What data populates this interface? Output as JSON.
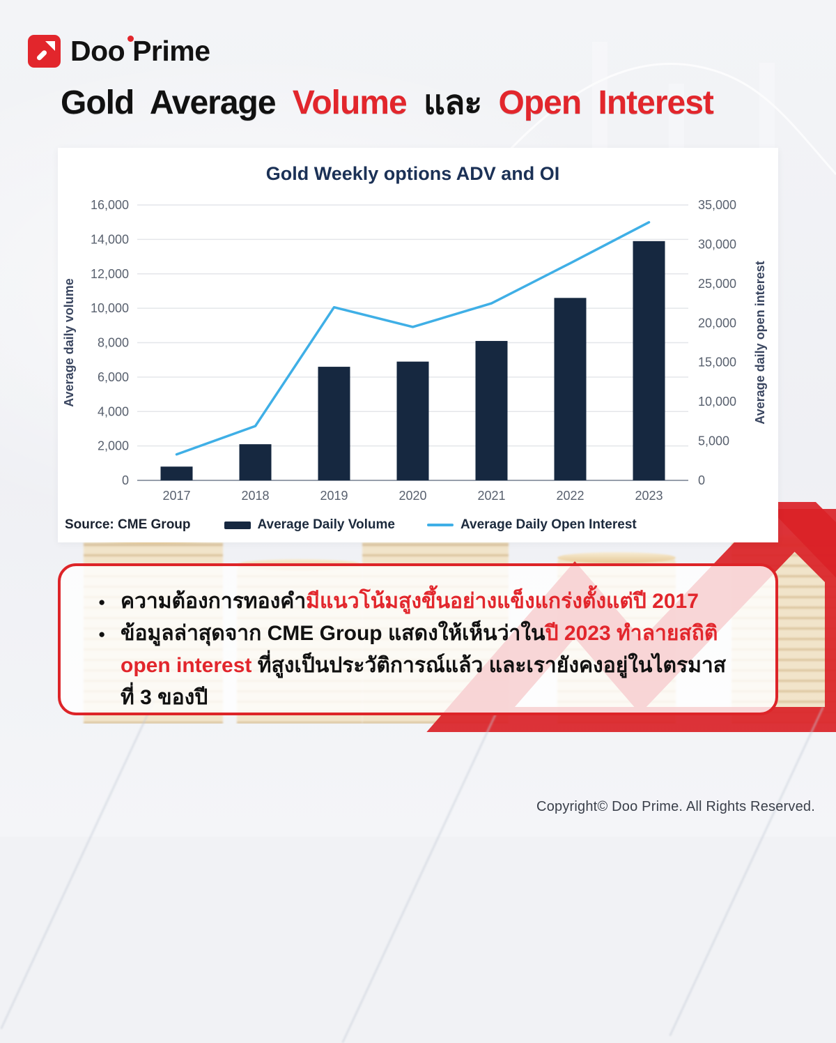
{
  "brand": {
    "name": "Doo Prime"
  },
  "header": {
    "title_segments": [
      {
        "text": "Gold Average ",
        "color": "#111111"
      },
      {
        "text": "Volume",
        "color": "#e2262c"
      },
      {
        "text": " และ ",
        "color": "#111111"
      },
      {
        "text": "Open Interest",
        "color": "#e2262c"
      }
    ]
  },
  "chart_card": {
    "source_label": "Source: CME Group"
  },
  "chart_data": {
    "type": "combo",
    "title": "Gold Weekly options ADV and OI",
    "categories": [
      "2017",
      "2018",
      "2019",
      "2020",
      "2021",
      "2022",
      "2023"
    ],
    "series": [
      {
        "name": "Average Daily Volume",
        "type": "bar",
        "axis": "left",
        "color": "#162840",
        "values": [
          800,
          2100,
          6600,
          6900,
          8100,
          10600,
          13900
        ]
      },
      {
        "name": "Average Daily Open Interest",
        "type": "line",
        "axis": "right",
        "color": "#3fafe6",
        "values": [
          3300,
          6900,
          22000,
          19500,
          22500,
          27600,
          32800
        ]
      }
    ],
    "left_axis": {
      "label": "Average daily volume",
      "min": 0,
      "max": 16000,
      "step": 2000
    },
    "right_axis": {
      "label": "Average daily open interest",
      "min": 0,
      "max": 35000,
      "step": 5000
    },
    "grid": true,
    "legend_position": "bottom"
  },
  "notes": {
    "bullets": [
      {
        "segments": [
          {
            "text": "ความต้องการทองคำ",
            "color": "#111111"
          },
          {
            "text": "มีแนวโน้มสูงขึ้นอย่างแข็งแกร่งตั้งแต่ปี 2017",
            "color": "#e2262c"
          }
        ]
      },
      {
        "segments": [
          {
            "text": "ข้อมูลล่าสุดจาก CME Group แสดงให้เห็นว่าใน",
            "color": "#111111"
          },
          {
            "text": "ปี 2023 ทำลายสถิติ open interest",
            "color": "#e2262c"
          },
          {
            "text": " ที่สูงเป็นประวัติการณ์แล้ว และเรายังคงอยู่ในไตรมาสที่ 3 ของปี",
            "color": "#111111"
          }
        ]
      }
    ]
  },
  "footer": {
    "copyright": "Copyright© Doo Prime. All Rights Reserved."
  },
  "colors": {
    "accent_red": "#e2262c",
    "bar_navy": "#162840",
    "line_blue": "#3fafe6",
    "title_navy": "#1b3156"
  }
}
